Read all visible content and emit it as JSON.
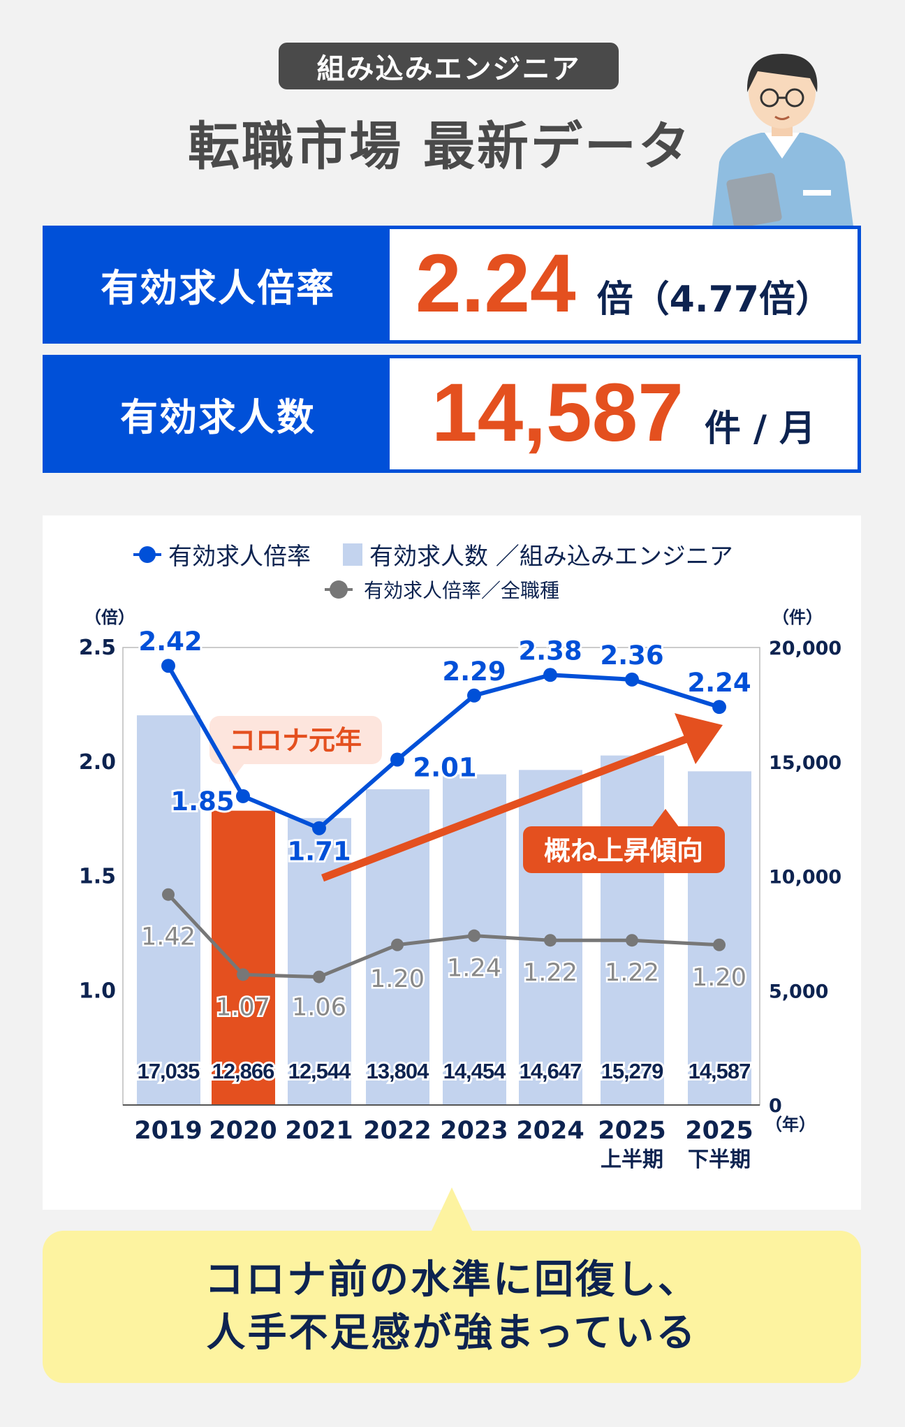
{
  "header": {
    "category": "組み込みエンジニア",
    "title": "転職市場 最新データ"
  },
  "stats": [
    {
      "label": "有効求人倍率",
      "value": "2.24",
      "unit": "倍（4.77倍）"
    },
    {
      "label": "有効求人数",
      "value": "14,587",
      "unit": "件 / 月"
    }
  ],
  "colors": {
    "blue": "#0050d8",
    "orange": "#e4501f",
    "bar": "#c3d3ee",
    "gray": "#777777",
    "navy": "#0d2350"
  },
  "chart_data": {
    "type": "bar+line",
    "categories": [
      "2019",
      "2020",
      "2021",
      "2022",
      "2023",
      "2024",
      "2025\n上半期",
      "2025\n下半期"
    ],
    "category_lines": [
      [
        "2019"
      ],
      [
        "2020"
      ],
      [
        "2021"
      ],
      [
        "2022"
      ],
      [
        "2023"
      ],
      [
        "2024"
      ],
      [
        "2025",
        "上半期"
      ],
      [
        "2025",
        "下半期"
      ]
    ],
    "series": [
      {
        "name": "有効求人数／組み込みエンジニア",
        "type": "bar",
        "axis": "right",
        "values": [
          17035,
          12866,
          12544,
          13804,
          14454,
          14647,
          15279,
          14587
        ],
        "labels": [
          "17,035",
          "12,866",
          "12,544",
          "13,804",
          "14,454",
          "14,647",
          "15,279",
          "14,587"
        ],
        "highlight_index": 1
      },
      {
        "name": "有効求人倍率",
        "type": "line",
        "axis": "left",
        "color": "#0050d8",
        "values": [
          2.42,
          1.85,
          1.71,
          2.01,
          2.29,
          2.38,
          2.36,
          2.24
        ]
      },
      {
        "name": "有効求人倍率／全職種",
        "type": "line",
        "axis": "left",
        "color": "#777777",
        "values": [
          1.42,
          1.07,
          1.06,
          1.2,
          1.24,
          1.22,
          1.22,
          1.2
        ]
      }
    ],
    "left_axis": {
      "unit": "（倍）",
      "ylim": [
        0.5,
        2.5
      ],
      "ticks": [
        "2.5",
        "2.0",
        "1.5",
        "1.0"
      ]
    },
    "right_axis": {
      "unit": "（件）",
      "ylim": [
        0,
        20000
      ],
      "ticks": [
        "20,000",
        "15,000",
        "10,000",
        "5,000",
        "0"
      ]
    },
    "x_unit": "（年）",
    "legend_position": "top",
    "annotations": {
      "covid": "コロナ元年",
      "trend": "概ね上昇傾向"
    }
  },
  "callout": {
    "line1": "コロナ前の水準に回復し、",
    "line2": "人手不足感が強まっている"
  }
}
